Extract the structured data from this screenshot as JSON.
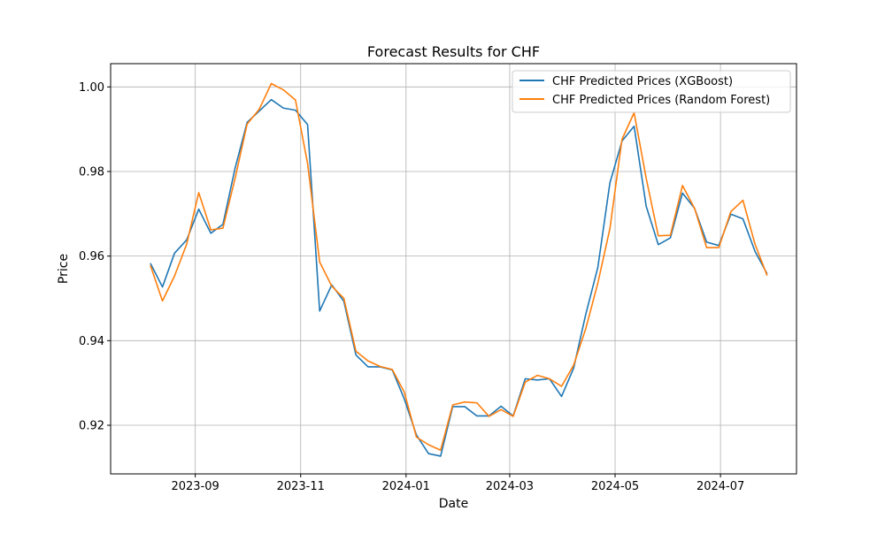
{
  "chart_data": {
    "type": "line",
    "title": "Forecast Results for CHF",
    "xlabel": "Date",
    "ylabel": "Price",
    "xlim": [
      "2023-07-14",
      "2024-08-14"
    ],
    "ylim": [
      0.9085,
      1.0055
    ],
    "x_ticks": [
      "2023-09",
      "2023-11",
      "2024-01",
      "2024-03",
      "2024-05",
      "2024-07"
    ],
    "y_ticks": [
      "0.92",
      "0.94",
      "0.96",
      "0.98",
      "1.00"
    ],
    "grid": true,
    "legend_position": "top-right",
    "x": [
      "2023-08-06",
      "2023-08-13",
      "2023-08-20",
      "2023-08-27",
      "2023-09-03",
      "2023-09-10",
      "2023-09-17",
      "2023-09-24",
      "2023-10-01",
      "2023-10-08",
      "2023-10-15",
      "2023-10-22",
      "2023-10-29",
      "2023-11-05",
      "2023-11-12",
      "2023-11-19",
      "2023-11-26",
      "2023-12-03",
      "2023-12-10",
      "2023-12-17",
      "2023-12-24",
      "2023-12-31",
      "2024-01-07",
      "2024-01-14",
      "2024-01-21",
      "2024-01-28",
      "2024-02-04",
      "2024-02-11",
      "2024-02-18",
      "2024-02-25",
      "2024-03-03",
      "2024-03-10",
      "2024-03-17",
      "2024-03-24",
      "2024-03-31",
      "2024-04-07",
      "2024-04-14",
      "2024-04-21",
      "2024-04-28",
      "2024-05-05",
      "2024-05-12",
      "2024-05-19",
      "2024-05-26",
      "2024-06-02",
      "2024-06-09",
      "2024-06-16",
      "2024-06-23",
      "2024-06-30",
      "2024-07-07",
      "2024-07-14",
      "2024-07-21",
      "2024-07-28"
    ],
    "series": [
      {
        "name": "CHF Predicted Prices (XGBoost)",
        "color": "#1f77b4",
        "values": [
          0.9583,
          0.9527,
          0.9607,
          0.9638,
          0.9711,
          0.9654,
          0.9675,
          0.9807,
          0.9916,
          0.9943,
          0.997,
          0.995,
          0.9945,
          0.9911,
          0.947,
          0.9532,
          0.9493,
          0.9366,
          0.9338,
          0.9338,
          0.9331,
          0.9262,
          0.9177,
          0.9133,
          0.9127,
          0.9244,
          0.9244,
          0.9222,
          0.9222,
          0.9245,
          0.9222,
          0.931,
          0.9307,
          0.931,
          0.9268,
          0.9335,
          0.9462,
          0.9573,
          0.9773,
          0.9872,
          0.9907,
          0.9718,
          0.9627,
          0.9643,
          0.9749,
          0.9713,
          0.9633,
          0.9625,
          0.9699,
          0.9688,
          0.9611,
          0.9558
        ]
      },
      {
        "name": "CHF Predicted Prices (Random Forest)",
        "color": "#ff7f0e",
        "values": [
          0.9578,
          0.9494,
          0.9553,
          0.9628,
          0.975,
          0.9662,
          0.9666,
          0.9783,
          0.9912,
          0.9947,
          1.0008,
          0.9993,
          0.9969,
          0.9819,
          0.9586,
          0.9529,
          0.95,
          0.9375,
          0.9352,
          0.9339,
          0.9332,
          0.9278,
          0.9172,
          0.9154,
          0.9141,
          0.9248,
          0.9255,
          0.9253,
          0.9221,
          0.9237,
          0.9221,
          0.9302,
          0.9318,
          0.931,
          0.9292,
          0.9342,
          0.9428,
          0.9536,
          0.9665,
          0.9876,
          0.9939,
          0.9784,
          0.9648,
          0.9649,
          0.9767,
          0.9713,
          0.962,
          0.962,
          0.9705,
          0.9732,
          0.9628,
          0.9554
        ]
      }
    ]
  }
}
